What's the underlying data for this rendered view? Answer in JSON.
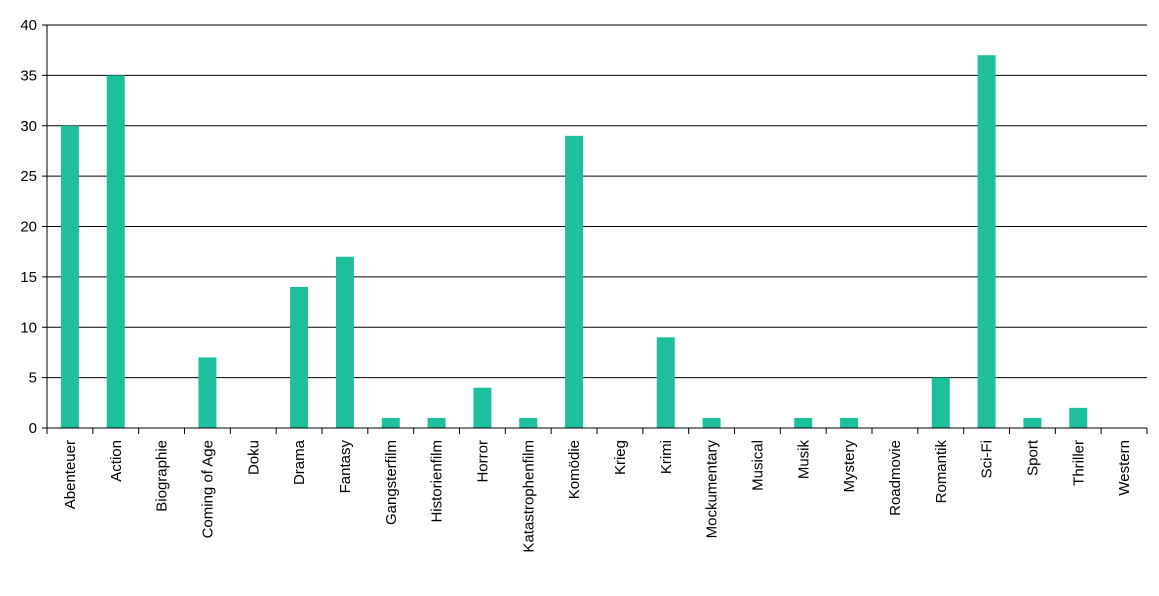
{
  "chart_data": {
    "type": "bar",
    "categories": [
      "Abenteuer",
      "Action",
      "Biographie",
      "Coming of Age",
      "Doku",
      "Drama",
      "Fantasy",
      "Gangsterfilm",
      "Historienfilm",
      "Horror",
      "Katastrophenfilm",
      "Komödie",
      "Krieg",
      "Krimi",
      "Mockumentary",
      "Musical",
      "Musik",
      "Mystery",
      "Roadmovie",
      "Romantik",
      "Sci-Fi",
      "Sport",
      "Thriller",
      "Western"
    ],
    "values": [
      30,
      35,
      0,
      7,
      0,
      14,
      17,
      1,
      1,
      4,
      1,
      29,
      0,
      9,
      1,
      0,
      1,
      1,
      0,
      5,
      37,
      1,
      2,
      0
    ],
    "title": "",
    "xlabel": "",
    "ylabel": "",
    "ylim": [
      0,
      40
    ],
    "yticks": [
      0,
      5,
      10,
      15,
      20,
      25,
      30,
      35,
      40
    ],
    "grid": true,
    "legend": "none",
    "bar_color": "#1dbf9d"
  }
}
